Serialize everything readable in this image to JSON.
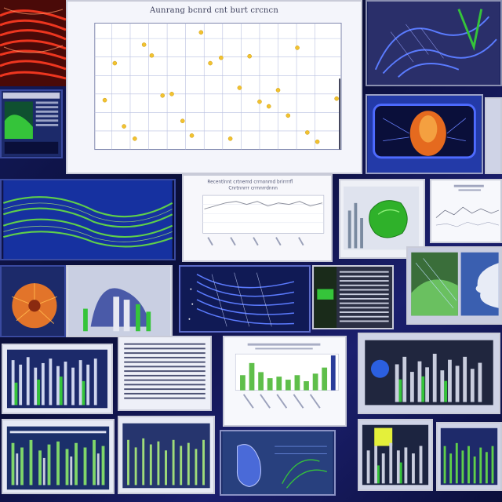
{
  "collage": {
    "scatter_panel": {
      "title": "Aunrang bcnrd cnt burt crcncn",
      "points_color": "#f2c230",
      "grid_color": "#b8bfe0"
    },
    "line_panel": {
      "title_line1": "Recentlnnt crtnemd crrnonmd brirrrrfl",
      "title_line2": "Cnrtnnrrr crrnnrrdnnn",
      "line_color": "#8c8f9c"
    },
    "bar_panel": {
      "bar_color": "#5fbf4a",
      "accent_color": "#2a3d9a"
    },
    "palette": {
      "background": "#0b0f3a",
      "accent_green": "#35c43a",
      "accent_blue": "#2b3fd0",
      "accent_orange": "#e56a1f",
      "accent_red": "#d0231a"
    }
  }
}
